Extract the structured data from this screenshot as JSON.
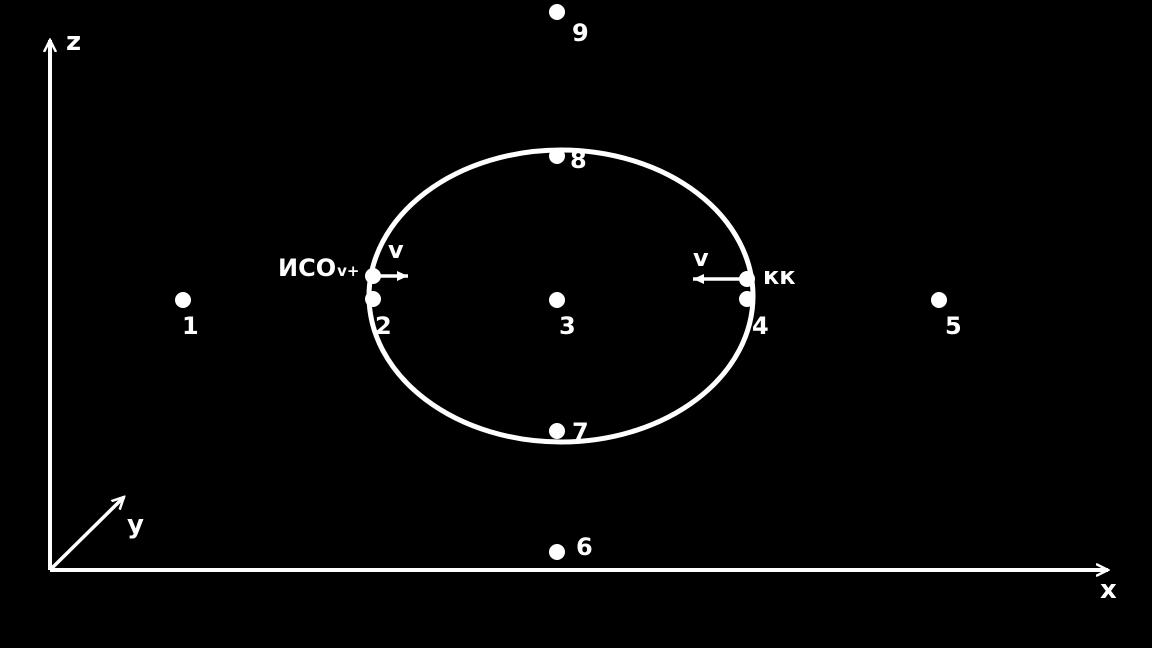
{
  "axes": {
    "x": "x",
    "y": "y",
    "z": "z"
  },
  "points": [
    {
      "id": "p1",
      "label": "1"
    },
    {
      "id": "p2",
      "label": "2"
    },
    {
      "id": "p3",
      "label": "3"
    },
    {
      "id": "p4",
      "label": "4"
    },
    {
      "id": "p5",
      "label": "5"
    },
    {
      "id": "p6",
      "label": "6"
    },
    {
      "id": "p7",
      "label": "7"
    },
    {
      "id": "p8",
      "label": "8"
    },
    {
      "id": "p9",
      "label": "9"
    }
  ],
  "left_frame": {
    "name": "ИСО",
    "subscript": "v+",
    "velocity": "v"
  },
  "right_frame": {
    "name": "кк",
    "velocity": "v"
  },
  "colors": {
    "background": "#000000",
    "foreground": "#ffffff"
  }
}
